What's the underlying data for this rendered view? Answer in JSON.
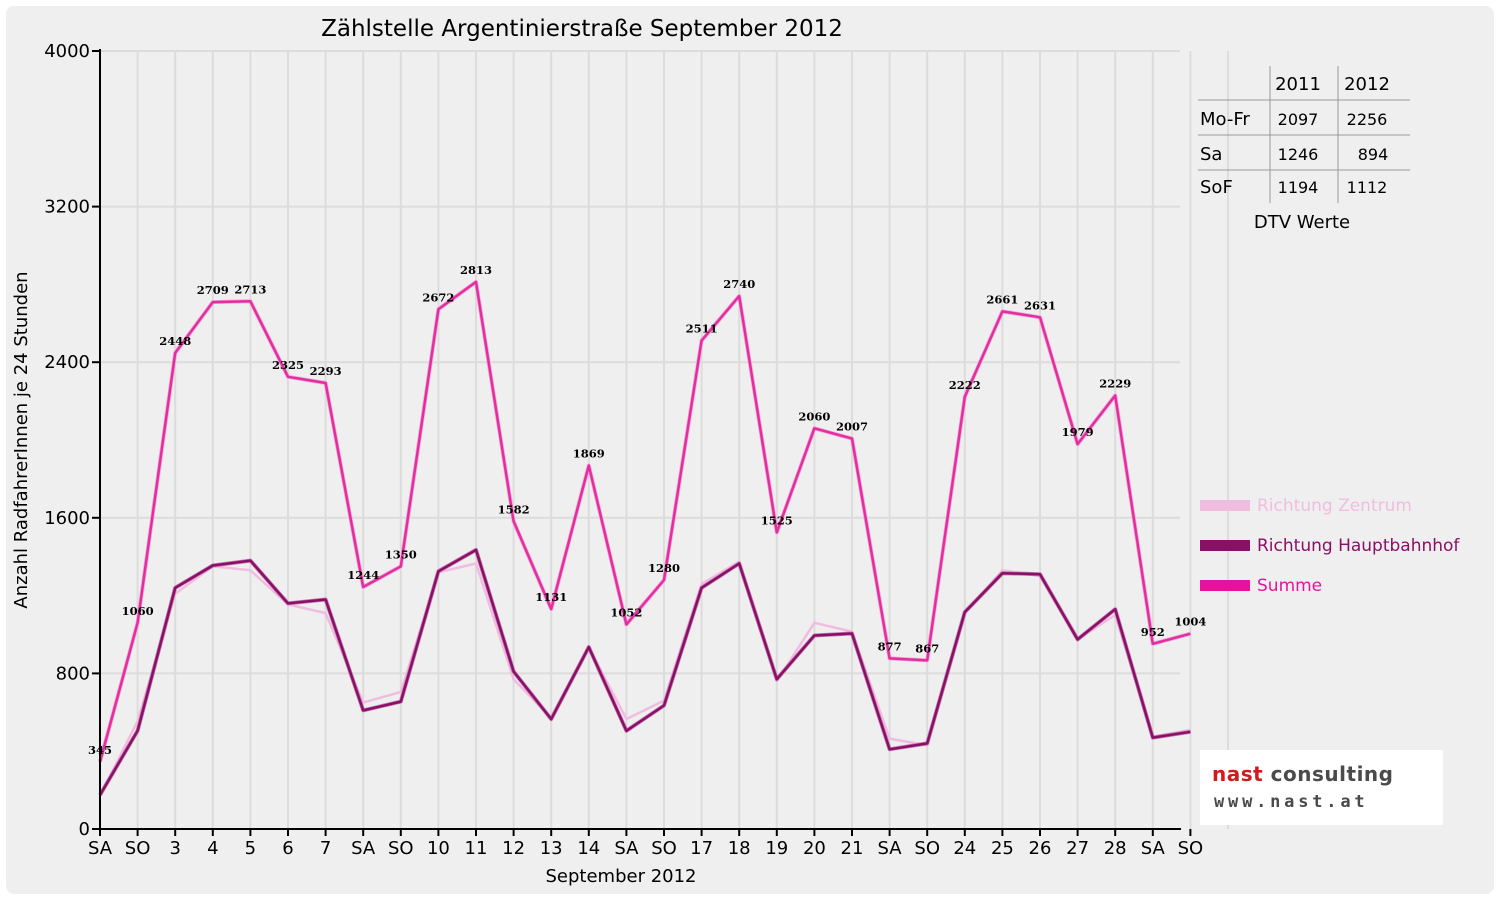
{
  "title": "Zählstelle Argentinierstraße September 2012",
  "colors": {
    "zentrum": "#f0bde0",
    "hauptbahnhof": "#8a0f66",
    "summe": "#e22ea0",
    "weekend": "#ff0000",
    "grid": "#dcdcdc"
  },
  "chart_data": {
    "type": "line",
    "title": "Zählstelle Argentinierstraße September 2012",
    "xlabel": "September 2012",
    "ylabel": "Anzahl RadfahrerInnen je 24 Stunden",
    "ylim": [
      0,
      4000
    ],
    "yticks": [
      "0",
      "800",
      "1600",
      "2400",
      "3200",
      "4000"
    ],
    "grid": true,
    "legend_position": "right",
    "categories": [
      "SA",
      "SO",
      "3",
      "4",
      "5",
      "6",
      "7",
      "SA",
      "SO",
      "10",
      "11",
      "12",
      "13",
      "14",
      "SA",
      "SO",
      "17",
      "18",
      "19",
      "20",
      "21",
      "SA",
      "SO",
      "24",
      "25",
      "26",
      "27",
      "28",
      "SA",
      "SO"
    ],
    "weekend_flags": [
      0,
      1,
      0,
      0,
      0,
      0,
      0,
      0,
      1,
      0,
      0,
      0,
      0,
      0,
      0,
      1,
      0,
      0,
      0,
      0,
      0,
      0,
      1,
      0,
      0,
      0,
      0,
      0,
      0,
      1
    ],
    "series": [
      {
        "name": "Richtung Zentrum",
        "values": [
          170,
          555,
          1210,
          1350,
          1330,
          1155,
          1110,
          650,
          705,
          1320,
          1365,
          770,
          570,
          935,
          565,
          660,
          1260,
          1375,
          760,
          1060,
          1015,
          465,
          430,
          1110,
          1330,
          1300,
          975,
          1100,
          475,
          510
        ]
      },
      {
        "name": "Richtung Hauptbahnhof",
        "values": [
          175,
          505,
          1240,
          1355,
          1380,
          1160,
          1180,
          610,
          655,
          1325,
          1435,
          810,
          565,
          935,
          505,
          635,
          1240,
          1365,
          770,
          995,
          1005,
          410,
          440,
          1115,
          1315,
          1310,
          975,
          1130,
          470,
          500
        ]
      },
      {
        "name": "Summe",
        "values": [
          345,
          1060,
          2448,
          2709,
          2713,
          2325,
          2293,
          1244,
          1350,
          2672,
          2813,
          1582,
          1131,
          1869,
          1052,
          1280,
          2511,
          2740,
          1525,
          2060,
          2007,
          877,
          867,
          2222,
          2661,
          2631,
          1979,
          2229,
          952,
          1004
        ]
      }
    ],
    "data_labels": [
      "345",
      "1060",
      "2448",
      "2709",
      "2713",
      "2325",
      "2293",
      "1244",
      "1350",
      "2672",
      "2813",
      "1582",
      "1131",
      "1869",
      "1052",
      "1280",
      "2511",
      "2740",
      "1525",
      "2060",
      "2007",
      "877",
      "867",
      "2222",
      "2661",
      "2631",
      "1979",
      "2229",
      "952",
      "1004"
    ]
  },
  "legend": {
    "zentrum": "Richtung Zentrum",
    "hauptbahnhof": "Richtung Hauptbahnhof",
    "summe": "Summe"
  },
  "dtv_table": {
    "headers": [
      "2011",
      "2012"
    ],
    "rows": [
      {
        "label": "Mo-Fr",
        "v2011": "2097",
        "v2012": "2256"
      },
      {
        "label": "Sa",
        "v2011": "1246",
        "v2012": "894"
      },
      {
        "label": "SoF",
        "v2011": "1194",
        "v2012": "1112"
      }
    ],
    "caption": "DTV Werte"
  },
  "logo": {
    "name_part1": "nast",
    "name_part2": "consulting",
    "url": "www.nast.at"
  }
}
